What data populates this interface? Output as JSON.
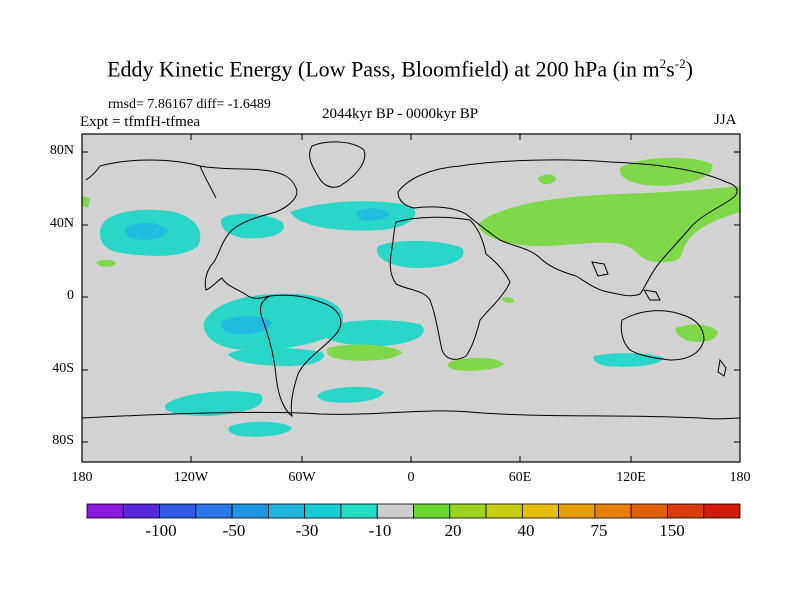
{
  "title": {
    "main": "Eddy Kinetic Energy (Low Pass, Bloomfield) at 200 hPa (in m",
    "sup1": "2",
    "mid": "s",
    "sup2": "-2",
    "end": ")"
  },
  "stats": "rmsd= 7.86167 diff= -1.6489",
  "expt": "Expt = tfmfH-tfmea",
  "period": "2044kyr BP - 0000kyr BP",
  "season": "JJA",
  "lat_labels": [
    "80N",
    "40N",
    "0",
    "40S",
    "80S"
  ],
  "lon_labels": [
    "180",
    "120W",
    "60W",
    "0",
    "60E",
    "120E",
    "180"
  ],
  "colorbar": {
    "colors": [
      "#8a1ae0",
      "#5a28dc",
      "#2f5ae6",
      "#2a78e6",
      "#1f96e2",
      "#1fb4de",
      "#18cdd6",
      "#22dcc4",
      "#cdcdcd",
      "#6ad630",
      "#9ad41f",
      "#c8ce12",
      "#e6be0a",
      "#e8a00a",
      "#e6800a",
      "#e0600a",
      "#dc3c0a",
      "#d01a0a"
    ],
    "labels": [
      "-100",
      "-50",
      "-30",
      "-10",
      "20",
      "40",
      "75",
      "150"
    ]
  },
  "map": {
    "background": "#d2d2d2",
    "negative_color": "#2ad6c8",
    "negative_strong_color": "#21bce0",
    "positive_color": "#7ed84a"
  }
}
